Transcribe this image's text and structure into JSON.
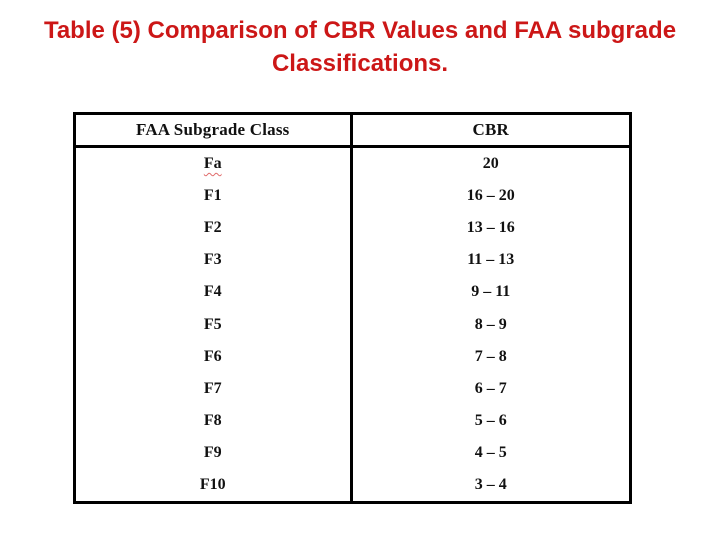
{
  "slide": {
    "title_line1": "Table (5) Comparison of CBR Values and FAA subgrade",
    "title_line2": "Classifications.",
    "title_color": "#cc1717"
  },
  "table": {
    "headers": [
      "FAA Subgrade Class",
      "CBR"
    ],
    "rows": [
      {
        "faa_class": "Fa",
        "cbr": "20"
      },
      {
        "faa_class": "F1",
        "cbr": "16 – 20"
      },
      {
        "faa_class": "F2",
        "cbr": "13 – 16"
      },
      {
        "faa_class": "F3",
        "cbr": "11 – 13"
      },
      {
        "faa_class": "F4",
        "cbr": "9 – 11"
      },
      {
        "faa_class": "F5",
        "cbr": "8 – 9"
      },
      {
        "faa_class": "F6",
        "cbr": "7 – 8"
      },
      {
        "faa_class": "F7",
        "cbr": "6 – 7"
      },
      {
        "faa_class": "F8",
        "cbr": "5 – 6"
      },
      {
        "faa_class": "F9",
        "cbr": "4 – 5"
      },
      {
        "faa_class": "F10",
        "cbr": "3 – 4"
      }
    ]
  }
}
